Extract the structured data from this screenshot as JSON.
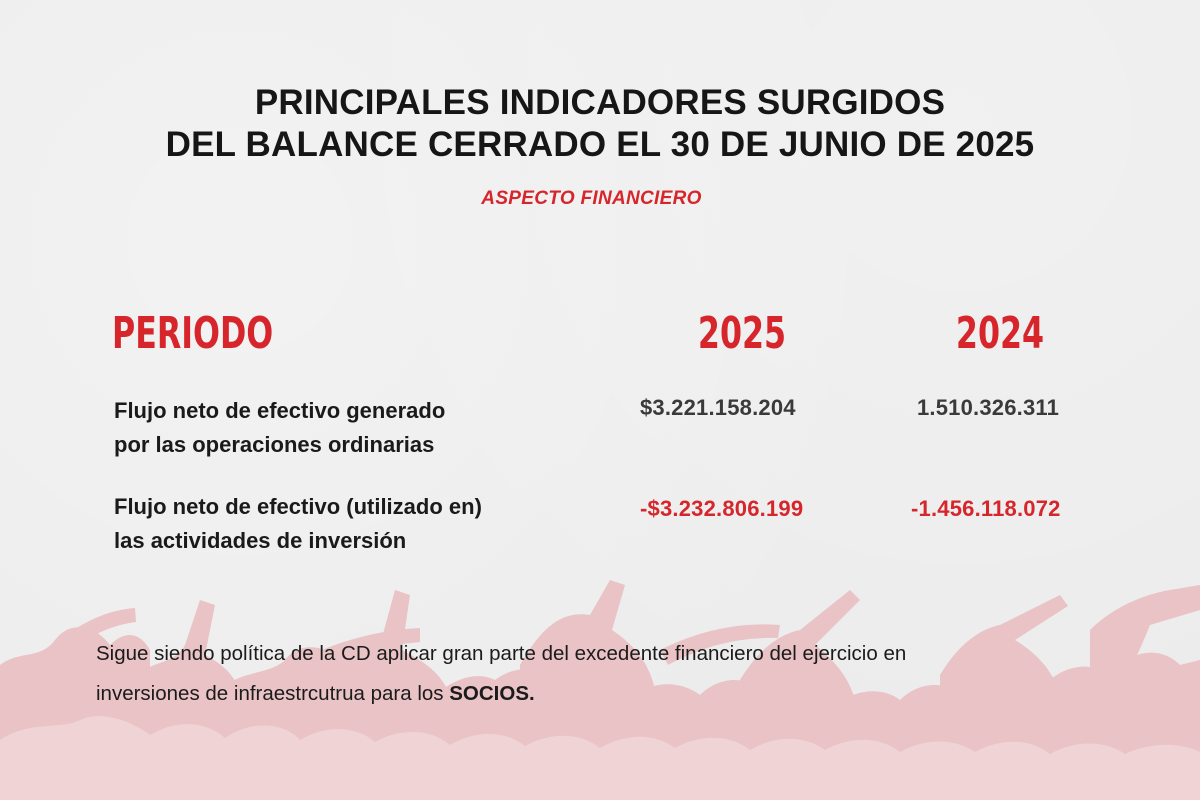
{
  "title": {
    "line1": "PRINCIPALES INDICADORES SURGIDOS",
    "line2": "DEL BALANCE CERRADO EL 30 DE JUNIO DE 2025"
  },
  "subtitle": "ASPECTO FINANCIERO",
  "table": {
    "headers": [
      "PERIODO",
      "2025",
      "2024"
    ],
    "rows": [
      {
        "label_line1": "Flujo neto de efectivo generado",
        "label_line2": "por las operaciones ordinarias",
        "v2025": "$3.221.158.204",
        "v2024": "1.510.326.311"
      },
      {
        "label_line1": "Flujo neto de efectivo (utilizado en)",
        "label_line2": "las actividades de inversión",
        "v2025": "-$3.232.806.199",
        "v2024": "-1.456.118.072"
      }
    ]
  },
  "note": {
    "line1": "Sigue siendo política de la CD aplicar gran parte del excedente financiero del ejercicio en",
    "line2_prefix": "inversiones de infraestrcutrua para los ",
    "line2_bold": "SOCIOS."
  },
  "colors": {
    "accent": "#d6262b",
    "background": "#ececec",
    "crowd": "#e7b9bc"
  }
}
